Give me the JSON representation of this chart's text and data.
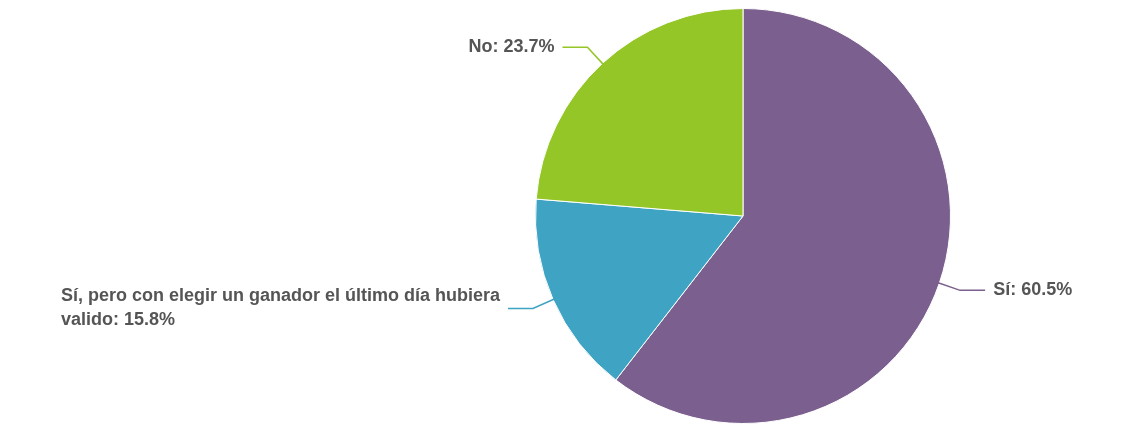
{
  "chart_data": {
    "type": "pie",
    "categories": [
      "Sí",
      "Sí, pero con elegir un ganador el último día hubiera valido",
      "No"
    ],
    "values": [
      60.5,
      15.8,
      23.7
    ],
    "value_labels": [
      "60.5%",
      "15.8%",
      "23.7%"
    ],
    "colors": [
      "#7b5f8f",
      "#3fa3c3",
      "#95c627"
    ]
  }
}
